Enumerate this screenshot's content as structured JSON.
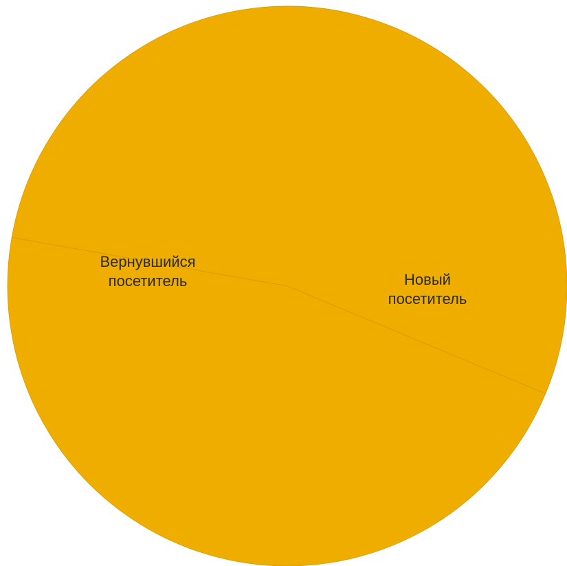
{
  "chart_data": {
    "type": "pie",
    "series": [
      {
        "values": [
          53.5,
          46.5
        ],
        "labels": [
          [
            "Вернувшийся",
            "посетитель"
          ],
          [
            "Новый",
            "посетитель"
          ]
        ],
        "colors": [
          "#efad00",
          "#efad00"
        ]
      }
    ],
    "start_angle_deg": -170,
    "slice_stroke": "#d69a00",
    "legend": "none"
  }
}
